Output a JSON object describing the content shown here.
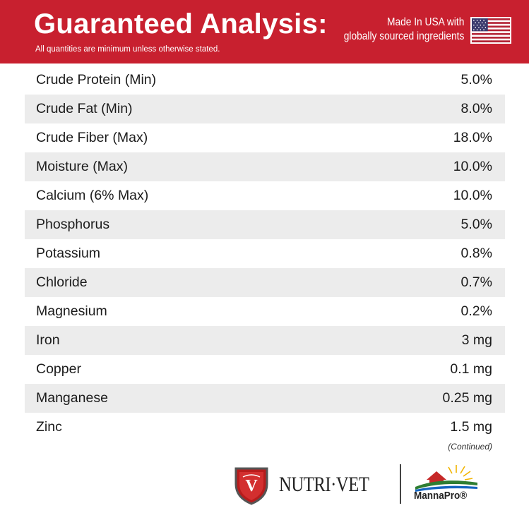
{
  "header": {
    "title": "Guaranteed Analysis:",
    "subtitle": "All quantities are minimum unless otherwise stated.",
    "origin_line1": "Made In USA with",
    "origin_line2": "globally sourced ingredients",
    "flag_icon": "us-flag-icon"
  },
  "colors": {
    "banner": "#c8202f",
    "row_shade": "#ececec",
    "text": "#1c1c1c"
  },
  "rows": [
    {
      "label": "Crude Protein (Min)",
      "value": "5.0%"
    },
    {
      "label": "Crude Fat (Min)",
      "value": "8.0%"
    },
    {
      "label": "Crude Fiber (Max)",
      "value": "18.0%"
    },
    {
      "label": "Moisture (Max)",
      "value": "10.0%"
    },
    {
      "label": "Calcium (6% Max)",
      "value": "10.0%"
    },
    {
      "label": "Phosphorus",
      "value": "5.0%"
    },
    {
      "label": "Potassium",
      "value": "0.8%"
    },
    {
      "label": "Chloride",
      "value": "0.7%"
    },
    {
      "label": "Magnesium",
      "value": "0.2%"
    },
    {
      "label": "Iron",
      "value": "3 mg"
    },
    {
      "label": "Copper",
      "value": "0.1 mg"
    },
    {
      "label": "Manganese",
      "value": "0.25 mg"
    },
    {
      "label": "Zinc",
      "value": "1.5 mg"
    }
  ],
  "continued": "(Continued)",
  "footer": {
    "brand1": "NUTRI·VET",
    "brand2": "MannaPro®"
  }
}
